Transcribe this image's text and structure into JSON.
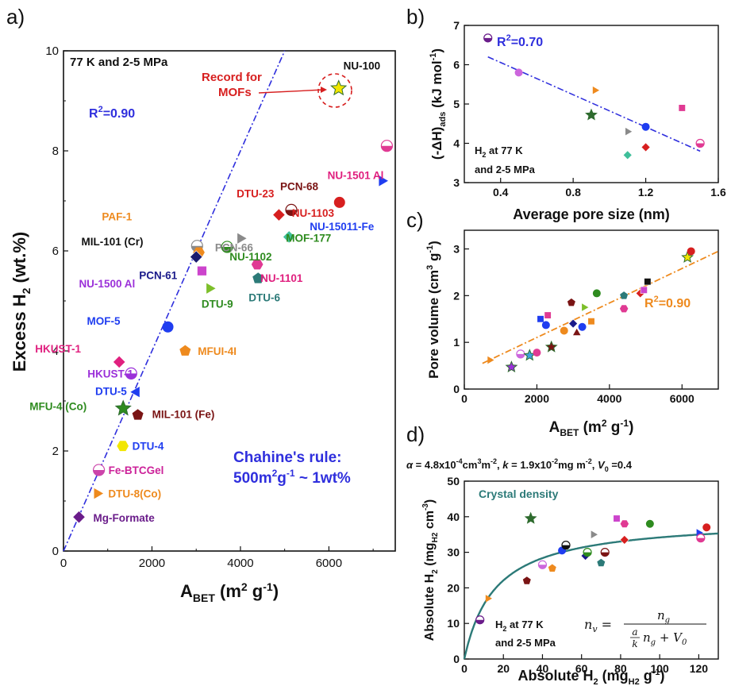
{
  "chart_data": [
    {
      "panel": "a)",
      "type": "scatter",
      "xlabel": "A<sub>BET</sub> (m<sup>2</sup> g<sup>-1</sup>)",
      "xlabel_main": "A",
      "xlabel_sub": "BET",
      "xlabel_rest": " (m",
      "xlabel_sup": "2",
      "xlabel_end": " g",
      "xlabel_sup2": "-1",
      "xlabel_close": ")",
      "ylabel_main": "Excess H",
      "ylabel_sub": "2",
      "ylabel_rest": " (wt.%)",
      "xlim": [
        0,
        7500
      ],
      "ylim": [
        0,
        10
      ],
      "xticks": [
        0,
        2000,
        4000,
        6000
      ],
      "yticks": [
        0,
        2,
        4,
        6,
        8,
        10
      ],
      "condition": "77 K and 2-5 MPa",
      "r2_main": "R",
      "r2_sup": "2",
      "r2_rest": "=0.90",
      "record_line1": "Record for",
      "record_line2": "MOFs",
      "rule_line1": "Chahine's rule:",
      "rule_line2_a": "500m",
      "rule_line2_sup": "2",
      "rule_line2_b": "g",
      "rule_line2_sup2": "-1",
      "rule_line2_c": " ~ 1wt%",
      "fit": {
        "slope": 0.002,
        "intercept": 0,
        "color": "#2f2fdd"
      },
      "points": [
        {
          "name": "NU-100",
          "x": 6220,
          "y": 9.25,
          "color": "#f2e600",
          "marker": "star",
          "label_color": "#111111"
        },
        {
          "name": "NU-1501 Al",
          "x": 7310,
          "y": 8.1,
          "color": "#e03a93",
          "marker": "half",
          "label_color": "#e0207f"
        },
        {
          "name": "NU-15011-Fe",
          "x": 7200,
          "y": 7.4,
          "color": "#1f3df0",
          "marker": "tri-right",
          "label_color": "#1f3df0"
        },
        {
          "name": "DTU-23",
          "x": 4870,
          "y": 6.72,
          "color": "#d71f1f",
          "marker": "diamond",
          "label_color": "#d71f1f"
        },
        {
          "name": "PCN-68",
          "x": 5150,
          "y": 6.82,
          "color": "#7a1414",
          "marker": "half",
          "label_color": "#7a1414"
        },
        {
          "name": "NU-1103",
          "x": 6240,
          "y": 6.97,
          "color": "#d71f1f",
          "marker": "circle",
          "label_color": "#d71f1f"
        },
        {
          "name": "PAF-1",
          "x": 3020,
          "y": 6.1,
          "color": "#8a8a8a",
          "marker": "half",
          "label_color": "#ee8a1e"
        },
        {
          "name": "PCN-66",
          "x": 4000,
          "y": 6.25,
          "color": "#8a8a8a",
          "marker": "tri-right",
          "label_color": "#8a8a8a"
        },
        {
          "name": "MIL-101 (Cr)",
          "x": 3060,
          "y": 5.97,
          "color": "#ee8a1e",
          "marker": "hexagon",
          "label_color": "#111111"
        },
        {
          "name": "MOF-177",
          "x": 5100,
          "y": 6.28,
          "color": "#3fbf9a",
          "marker": "diamond",
          "label_color": "#2e8b1f"
        },
        {
          "name": "NU-1102",
          "x": 3700,
          "y": 6.08,
          "color": "#2e8b1f",
          "marker": "half",
          "label_color": "#2e8b1f"
        },
        {
          "name": "PCN-61",
          "x": 3000,
          "y": 5.88,
          "color": "#1a1a6e",
          "marker": "diamond",
          "label_color": "#1a1a8a"
        },
        {
          "name": "NU-1500 Al",
          "x": 3130,
          "y": 5.6,
          "color": "#cc44cc",
          "marker": "square",
          "label_color": "#9b30d9"
        },
        {
          "name": "NU-1101",
          "x": 4380,
          "y": 5.73,
          "color": "#e03a93",
          "marker": "hexagon",
          "label_color": "#e0207f"
        },
        {
          "name": "DTU-9",
          "x": 3300,
          "y": 5.25,
          "color": "#7dbf2a",
          "marker": "tri-right",
          "label_color": "#2e8b1f"
        },
        {
          "name": "DTU-6",
          "x": 4400,
          "y": 5.45,
          "color": "#2c7a78",
          "marker": "pentagon",
          "label_color": "#2c7a78"
        },
        {
          "name": "MOF-5",
          "x": 2360,
          "y": 4.48,
          "color": "#1f3df0",
          "marker": "circle",
          "label_color": "#1f3df0"
        },
        {
          "name": "MFUI-4I",
          "x": 2750,
          "y": 4.0,
          "color": "#ee8a1e",
          "marker": "pentagon",
          "label_color": "#ee8a1e"
        },
        {
          "name": "HKUST-1",
          "x": 1260,
          "y": 3.78,
          "color": "#e0207f",
          "marker": "diamond",
          "label_color": "#e0207f"
        },
        {
          "name": "HKUST-1",
          "x": 1530,
          "y": 3.55,
          "color": "#9b30d9",
          "marker": "half",
          "label_color": "#9b30d9"
        },
        {
          "name": "DTU-5",
          "x": 1650,
          "y": 3.18,
          "color": "#1f3df0",
          "marker": "tri-left",
          "label_color": "#1f3df0"
        },
        {
          "name": "MFU-4 (Co)",
          "x": 1350,
          "y": 2.85,
          "color": "#2e8b1f",
          "marker": "star",
          "label_color": "#2e8b1f"
        },
        {
          "name": "MIL-101 (Fe)",
          "x": 1680,
          "y": 2.72,
          "color": "#7a1414",
          "marker": "pentagon",
          "label_color": "#7a1414"
        },
        {
          "name": "DTU-4",
          "x": 1340,
          "y": 2.1,
          "color": "#f2e600",
          "marker": "hexagon",
          "label_color": "#1f3df0"
        },
        {
          "name": "Fe-BTCGel",
          "x": 800,
          "y": 1.62,
          "color": "#cc44aa",
          "marker": "half",
          "label_color": "#cc2299"
        },
        {
          "name": "DTU-8(Co)",
          "x": 760,
          "y": 1.15,
          "color": "#ee8a1e",
          "marker": "tri-right",
          "label_color": "#ee8a1e"
        },
        {
          "name": "Mg-Formate",
          "x": 350,
          "y": 0.68,
          "color": "#6a1c8a",
          "marker": "diamond",
          "label_color": "#6a1c8a"
        }
      ]
    },
    {
      "panel": "b)",
      "type": "scatter",
      "xlabel": "Average pore size (nm)",
      "ylabel_main": "(-ΔH)",
      "ylabel_sub": "ads",
      "ylabel_rest": " (kJ mol",
      "ylabel_sup": "-1",
      "ylabel_close": ")",
      "xlim": [
        0.2,
        1.6
      ],
      "ylim": [
        3,
        7
      ],
      "xticks": [
        0.4,
        0.8,
        1.2,
        1.6
      ],
      "yticks": [
        3,
        4,
        5,
        6,
        7
      ],
      "r2_main": "R",
      "r2_sup": "2",
      "r2_rest": "=0.70",
      "cond_line1_a": "H",
      "cond_line1_sub": "2",
      "cond_line1_b": " at 77 K",
      "cond_line2": "and 2-5 MPa",
      "fit": {
        "x": [
          0.33,
          1.5
        ],
        "y": [
          6.2,
          3.8
        ],
        "color": "#2f2fdd"
      },
      "points": [
        {
          "x": 0.33,
          "y": 6.68,
          "color": "#6a1c8a",
          "marker": "half"
        },
        {
          "x": 0.5,
          "y": 5.8,
          "color": "#cc66dd",
          "marker": "circle"
        },
        {
          "x": 0.92,
          "y": 5.35,
          "color": "#ee8a1e",
          "marker": "tri-right"
        },
        {
          "x": 0.9,
          "y": 4.72,
          "color": "#2e6b2e",
          "marker": "star"
        },
        {
          "x": 1.1,
          "y": 4.3,
          "color": "#8a8a8a",
          "marker": "tri-right"
        },
        {
          "x": 1.2,
          "y": 4.42,
          "color": "#1f3df0",
          "marker": "circle"
        },
        {
          "x": 1.2,
          "y": 3.9,
          "color": "#d71f1f",
          "marker": "diamond"
        },
        {
          "x": 1.1,
          "y": 3.7,
          "color": "#3fbf9a",
          "marker": "diamond"
        },
        {
          "x": 1.4,
          "y": 4.9,
          "color": "#e03a93",
          "marker": "square"
        },
        {
          "x": 1.5,
          "y": 4.0,
          "color": "#e03a93",
          "marker": "half"
        }
      ]
    },
    {
      "panel": "c)",
      "type": "scatter",
      "xlabel_main": "A",
      "xlabel_sub": "BET",
      "xlabel_rest": " (m",
      "xlabel_sup": "2",
      "xlabel_end": " g",
      "xlabel_sup2": "-1",
      "xlabel_close": ")",
      "ylabel_main": "Pore volume (cm",
      "ylabel_sup": "3",
      "ylabel_rest": " g",
      "ylabel_sup2": "-1",
      "ylabel_close": ")",
      "xlim": [
        0,
        7000
      ],
      "ylim": [
        0,
        3.4
      ],
      "xticks": [
        0,
        2000,
        4000,
        6000
      ],
      "yticks": [
        0,
        1,
        2,
        3
      ],
      "r2_main": "R",
      "r2_sup": "2",
      "r2_rest": "=0.90",
      "fit": {
        "x": [
          500,
          7000
        ],
        "y": [
          0.55,
          2.95
        ],
        "color": "#ee8a1e"
      },
      "points": [
        {
          "x": 700,
          "y": 0.62,
          "color": "#ee8a1e",
          "marker": "tri-right"
        },
        {
          "x": 1300,
          "y": 0.47,
          "color": "#9b30d9",
          "marker": "star"
        },
        {
          "x": 1550,
          "y": 0.75,
          "color": "#cc66dd",
          "marker": "half"
        },
        {
          "x": 1800,
          "y": 0.72,
          "color": "#3fa0dd",
          "marker": "star"
        },
        {
          "x": 2000,
          "y": 0.78,
          "color": "#e03a93",
          "marker": "circle"
        },
        {
          "x": 2100,
          "y": 1.5,
          "color": "#1f3df0",
          "marker": "square"
        },
        {
          "x": 2250,
          "y": 1.37,
          "color": "#1f3df0",
          "marker": "circle"
        },
        {
          "x": 2300,
          "y": 1.58,
          "color": "#e03a93",
          "marker": "square"
        },
        {
          "x": 2400,
          "y": 0.9,
          "color": "#7a1414",
          "marker": "star"
        },
        {
          "x": 2750,
          "y": 1.25,
          "color": "#ee8a1e",
          "marker": "circle"
        },
        {
          "x": 2950,
          "y": 1.85,
          "color": "#7a1414",
          "marker": "pentagon"
        },
        {
          "x": 3000,
          "y": 1.4,
          "color": "#1a1a8a",
          "marker": "diamond"
        },
        {
          "x": 3100,
          "y": 1.2,
          "color": "#7a1414",
          "marker": "tri-up"
        },
        {
          "x": 3250,
          "y": 1.33,
          "color": "#1f3df0",
          "marker": "circle"
        },
        {
          "x": 3300,
          "y": 1.75,
          "color": "#7dbf2a",
          "marker": "tri-right"
        },
        {
          "x": 3500,
          "y": 1.45,
          "color": "#ee8a1e",
          "marker": "square"
        },
        {
          "x": 3650,
          "y": 2.05,
          "color": "#2e8b1f",
          "marker": "circle"
        },
        {
          "x": 4400,
          "y": 1.72,
          "color": "#e03a93",
          "marker": "hexagon"
        },
        {
          "x": 4400,
          "y": 2.0,
          "color": "#2c7a78",
          "marker": "pentagon"
        },
        {
          "x": 4850,
          "y": 2.05,
          "color": "#d71f1f",
          "marker": "diamond"
        },
        {
          "x": 4950,
          "y": 2.12,
          "color": "#cc44cc",
          "marker": "square"
        },
        {
          "x": 5050,
          "y": 2.3,
          "color": "#111111",
          "marker": "square"
        },
        {
          "x": 6150,
          "y": 2.82,
          "color": "#f2e600",
          "marker": "star"
        },
        {
          "x": 6250,
          "y": 2.95,
          "color": "#d71f1f",
          "marker": "circle"
        }
      ]
    },
    {
      "panel": "d)",
      "type": "scatter",
      "params_alpha": "α",
      "params_text1": " = 4.8x10",
      "params_sup1": "-4",
      "params_text2": "cm",
      "params_sup2": "3",
      "params_text3": "m",
      "params_sup3": "-2",
      "params_text4": ", ",
      "params_k": "k",
      "params_text5": " = 1.9x10",
      "params_sup4": "-2",
      "params_text6": "mg m",
      "params_sup5": "-2",
      "params_text7": ", ",
      "params_v": "V",
      "params_vsub": "0",
      "params_text8": " =0.4",
      "curve_label": "Crystal density",
      "cond_line1_a": "H",
      "cond_line1_sub": "2",
      "cond_line1_b": " at 77 K",
      "cond_line2": "and 2-5 MPa",
      "formula_lhs": "n",
      "formula_lhs_sub": "v",
      "formula_num": "n",
      "formula_num_sub": "g",
      "formula_den_a": "a",
      "formula_den_k": "k",
      "formula_den_n": "n",
      "formula_den_nsub": "g",
      "formula_den_plus": " + V",
      "formula_den_vsub": "0",
      "xlabel_main": "Absolute H",
      "xlabel_sub": "2",
      "xlabel_rest": " (mg",
      "xlabel_sub2": "H2",
      "xlabel_end": " g",
      "xlabel_sup": "-1",
      "xlabel_close": ")",
      "ylabel_main": "Absolute H",
      "ylabel_sub": "2",
      "ylabel_rest": " (mg",
      "ylabel_sub2": "H2",
      "ylabel_end": " cm",
      "ylabel_sup": "-3",
      "ylabel_close": ")",
      "xlim": [
        0,
        130
      ],
      "ylim": [
        0,
        50
      ],
      "xticks": [
        0,
        20,
        40,
        60,
        80,
        100,
        120
      ],
      "yticks": [
        0,
        10,
        20,
        30,
        40,
        50
      ],
      "curve": {
        "a": 0.00048,
        "k": 0.019,
        "v0": 0.4,
        "color": "#2c7a78"
      },
      "points": [
        {
          "x": 8,
          "y": 11,
          "color": "#6a1c8a",
          "marker": "half"
        },
        {
          "x": 12,
          "y": 17,
          "color": "#ee8a1e",
          "marker": "tri-right"
        },
        {
          "x": 32,
          "y": 22,
          "color": "#7a1414",
          "marker": "pentagon"
        },
        {
          "x": 34,
          "y": 39.5,
          "color": "#2e6b2e",
          "marker": "star"
        },
        {
          "x": 40,
          "y": 26.5,
          "color": "#cc66dd",
          "marker": "half"
        },
        {
          "x": 45,
          "y": 25.5,
          "color": "#ee8a1e",
          "marker": "pentagon"
        },
        {
          "x": 50,
          "y": 30.5,
          "color": "#1f3df0",
          "marker": "circle"
        },
        {
          "x": 52,
          "y": 32,
          "color": "#111111",
          "marker": "half"
        },
        {
          "x": 62,
          "y": 29,
          "color": "#1a1a8a",
          "marker": "diamond"
        },
        {
          "x": 63,
          "y": 30,
          "color": "#2e8b1f",
          "marker": "half"
        },
        {
          "x": 66,
          "y": 35,
          "color": "#8a8a8a",
          "marker": "tri-right"
        },
        {
          "x": 70,
          "y": 27,
          "color": "#2c7a78",
          "marker": "pentagon"
        },
        {
          "x": 72,
          "y": 30,
          "color": "#7a1414",
          "marker": "half"
        },
        {
          "x": 78,
          "y": 39.5,
          "color": "#cc44cc",
          "marker": "square"
        },
        {
          "x": 82,
          "y": 33.5,
          "color": "#d71f1f",
          "marker": "diamond"
        },
        {
          "x": 82,
          "y": 38,
          "color": "#e03a93",
          "marker": "hexagon"
        },
        {
          "x": 95,
          "y": 38,
          "color": "#2e8b1f",
          "marker": "circle"
        },
        {
          "x": 120,
          "y": 35.5,
          "color": "#1f3df0",
          "marker": "tri-right"
        },
        {
          "x": 121,
          "y": 34,
          "color": "#e03a93",
          "marker": "half"
        },
        {
          "x": 124,
          "y": 37,
          "color": "#d71f1f",
          "marker": "circle"
        }
      ]
    }
  ]
}
